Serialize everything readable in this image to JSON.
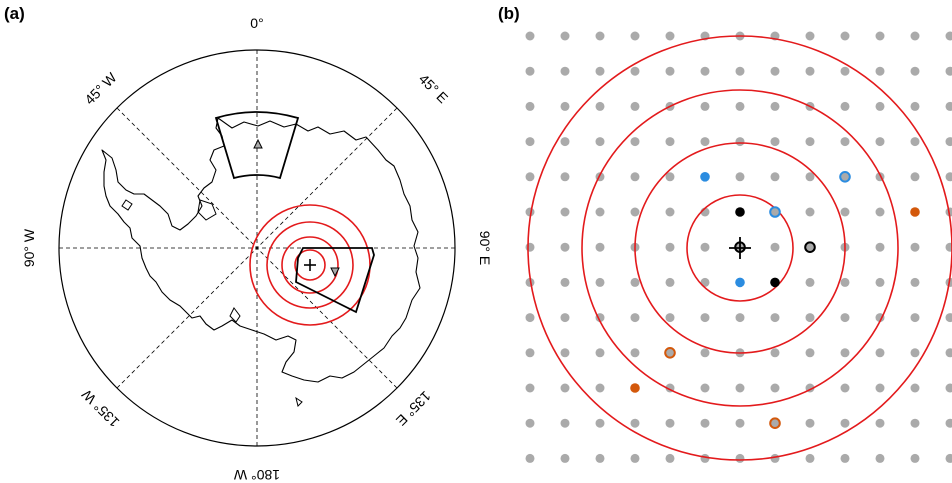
{
  "panel_a": {
    "label": "(a)",
    "longitude_labels": {
      "top": "0°",
      "top_right": "45° E",
      "right": "90° E",
      "bottom_right": "135° E",
      "bottom": "180° W",
      "bottom_left": "135° W",
      "left": "90° W",
      "top_left": "45° W"
    },
    "markers": {
      "target_symbol": "plus",
      "station_symbols": [
        "triangle-up",
        "triangle-down"
      ]
    },
    "colors": {
      "rings": "#e31a1c",
      "gridlines": "#000000",
      "coastline": "#000000"
    }
  },
  "panel_b": {
    "label": "(b)",
    "grid_columns": 13,
    "grid_rows": 13,
    "ring_count": 4,
    "colors": {
      "grid_point": "#aaaaaa",
      "ring": "#e31a1c",
      "black": "#000000",
      "blue": "#2b8ce0",
      "orange": "#d3580b"
    },
    "highlighted_points": [
      {
        "col": 6,
        "row": 5,
        "style": "black"
      },
      {
        "col": 7,
        "row": 5,
        "style": "gray-blue-ring"
      },
      {
        "col": 6,
        "row": 6,
        "style": "gray-black-ring"
      },
      {
        "col": 8,
        "row": 6,
        "style": "gray-black-ring"
      },
      {
        "col": 6,
        "row": 7,
        "style": "blue"
      },
      {
        "col": 7,
        "row": 7,
        "style": "black"
      },
      {
        "col": 5,
        "row": 4,
        "style": "blue"
      },
      {
        "col": 9,
        "row": 4,
        "style": "gray-blue-ring"
      },
      {
        "col": 11,
        "row": 5,
        "style": "orange"
      },
      {
        "col": 4,
        "row": 9,
        "style": "gray-orange-ring"
      },
      {
        "col": 3,
        "row": 10,
        "style": "orange"
      },
      {
        "col": 7,
        "row": 11,
        "style": "gray-orange-ring"
      }
    ]
  }
}
